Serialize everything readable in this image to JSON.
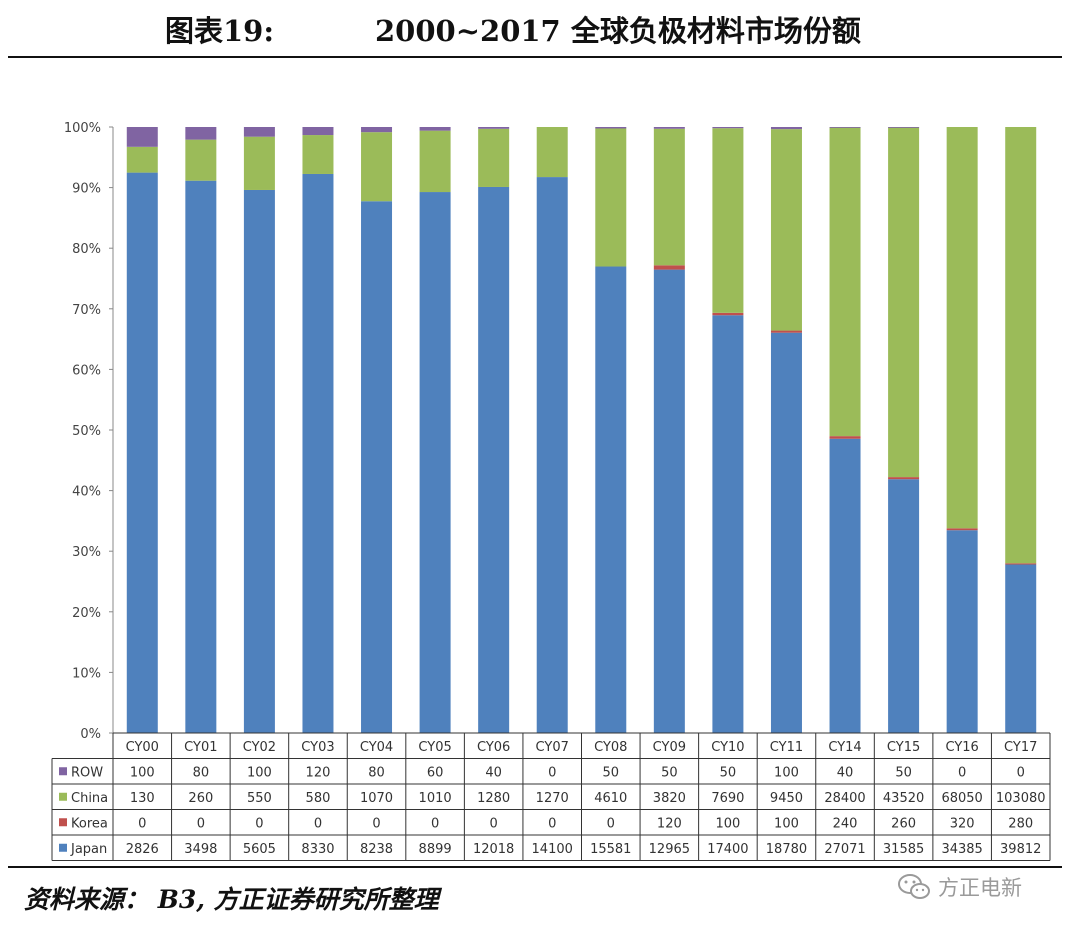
{
  "header": {
    "figure_number": "图表19:",
    "title": "2000~2017 全球负极材料市场份额"
  },
  "source": "资料来源： B3, 方正证券研究所整理",
  "watermark": "方正电新",
  "chart_data": {
    "type": "bar",
    "stacked": "percent",
    "categories": [
      "CY00",
      "CY01",
      "CY02",
      "CY03",
      "CY04",
      "CY05",
      "CY06",
      "CY07",
      "CY08",
      "CY09",
      "CY10",
      "CY11",
      "CY14",
      "CY15",
      "CY16",
      "CY17"
    ],
    "y_ticks": [
      "0%",
      "10%",
      "20%",
      "30%",
      "40%",
      "50%",
      "60%",
      "70%",
      "80%",
      "90%",
      "100%"
    ],
    "ylim": [
      0,
      100
    ],
    "grid": false,
    "legend": "data-table",
    "series": [
      {
        "name": "ROW",
        "color": "#8064a2",
        "values": [
          100,
          80,
          100,
          120,
          80,
          60,
          40,
          0,
          50,
          50,
          50,
          100,
          40,
          50,
          0,
          0
        ]
      },
      {
        "name": "China",
        "color": "#9bbb59",
        "values": [
          130,
          260,
          550,
          580,
          1070,
          1010,
          1280,
          1270,
          4610,
          3820,
          7690,
          9450,
          28400,
          43520,
          68050,
          103080
        ]
      },
      {
        "name": "Korea",
        "color": "#c0504d",
        "values": [
          0,
          0,
          0,
          0,
          0,
          0,
          0,
          0,
          0,
          120,
          100,
          100,
          240,
          260,
          320,
          280
        ]
      },
      {
        "name": "Japan",
        "color": "#4f81bd",
        "values": [
          2826,
          3498,
          5605,
          8330,
          8238,
          8899,
          12018,
          14100,
          15581,
          12965,
          17400,
          18780,
          27071,
          31585,
          34385,
          39812
        ]
      }
    ]
  }
}
